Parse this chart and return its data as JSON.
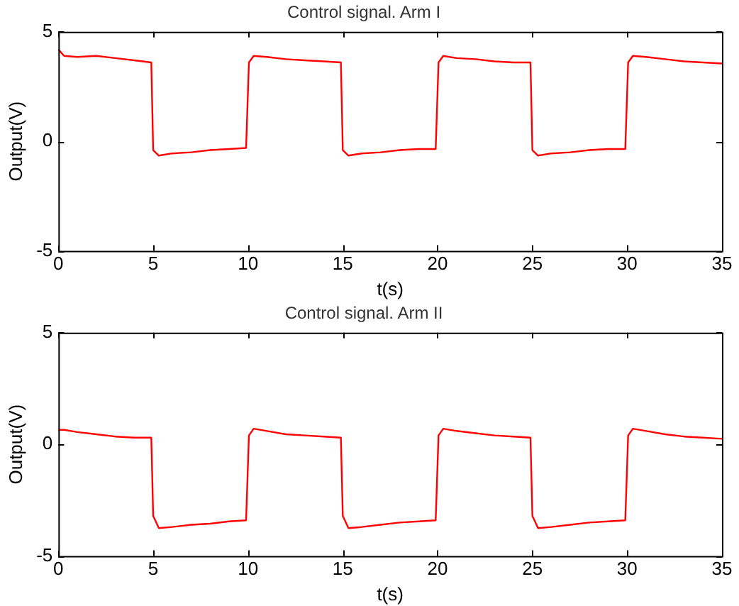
{
  "chart_data": [
    {
      "type": "line",
      "title": "Control signal. Arm I",
      "xlabel": "t(s)",
      "ylabel": "Output(V)",
      "xlim": [
        0,
        35
      ],
      "ylim": [
        -5,
        5
      ],
      "xticks": [
        0,
        5,
        10,
        15,
        20,
        25,
        30,
        35
      ],
      "yticks": [
        -5,
        0,
        5
      ],
      "grid": false,
      "legend": false,
      "series": [
        {
          "color": "#ff0000",
          "x": [
            0,
            0.3,
            1,
            2,
            3,
            4,
            4.9,
            5.0,
            5.3,
            6,
            7,
            8,
            9,
            9.9,
            10.05,
            10.3,
            11,
            12,
            13,
            14,
            14.9,
            15.0,
            15.3,
            16,
            17,
            18,
            19,
            19.9,
            20.05,
            20.3,
            21,
            22,
            23,
            24,
            24.9,
            25.0,
            25.3,
            26,
            27,
            28,
            29,
            29.9,
            30.05,
            30.3,
            31,
            32,
            33,
            34,
            35
          ],
          "values": [
            4.2,
            3.9,
            3.85,
            3.9,
            3.8,
            3.7,
            3.6,
            -0.4,
            -0.65,
            -0.55,
            -0.5,
            -0.4,
            -0.35,
            -0.3,
            3.6,
            3.9,
            3.85,
            3.75,
            3.7,
            3.65,
            3.6,
            -0.4,
            -0.65,
            -0.55,
            -0.5,
            -0.4,
            -0.35,
            -0.35,
            3.6,
            3.9,
            3.8,
            3.75,
            3.65,
            3.6,
            3.6,
            -0.4,
            -0.65,
            -0.55,
            -0.5,
            -0.4,
            -0.35,
            -0.35,
            3.6,
            3.9,
            3.85,
            3.75,
            3.65,
            3.6,
            3.55
          ]
        }
      ]
    },
    {
      "type": "line",
      "title": "Control signal. Arm II",
      "xlabel": "t(s)",
      "ylabel": "Output(V)",
      "xlim": [
        0,
        35
      ],
      "ylim": [
        -5,
        5
      ],
      "xticks": [
        0,
        5,
        10,
        15,
        20,
        25,
        30,
        35
      ],
      "yticks": [
        -5,
        0,
        5
      ],
      "grid": false,
      "legend": false,
      "series": [
        {
          "color": "#ff0000",
          "x": [
            0,
            0.3,
            1,
            2,
            3,
            4,
            4.9,
            5.0,
            5.3,
            6,
            7,
            8,
            9,
            9.9,
            10.05,
            10.3,
            11,
            12,
            13,
            14,
            14.9,
            15.0,
            15.3,
            16,
            17,
            18,
            19,
            19.9,
            20.05,
            20.3,
            21,
            22,
            23,
            24,
            24.9,
            25.0,
            25.3,
            26,
            27,
            28,
            29,
            29.9,
            30.05,
            30.3,
            31,
            32,
            33,
            34,
            35
          ],
          "values": [
            0.65,
            0.65,
            0.55,
            0.45,
            0.35,
            0.3,
            0.3,
            -3.2,
            -3.75,
            -3.7,
            -3.6,
            -3.55,
            -3.45,
            -3.4,
            0.4,
            0.7,
            0.6,
            0.45,
            0.4,
            0.35,
            0.3,
            -3.2,
            -3.75,
            -3.7,
            -3.6,
            -3.5,
            -3.45,
            -3.4,
            0.4,
            0.7,
            0.6,
            0.5,
            0.4,
            0.35,
            0.3,
            -3.2,
            -3.75,
            -3.7,
            -3.6,
            -3.5,
            -3.45,
            -3.4,
            0.4,
            0.7,
            0.6,
            0.45,
            0.35,
            0.3,
            0.25
          ]
        }
      ]
    }
  ]
}
